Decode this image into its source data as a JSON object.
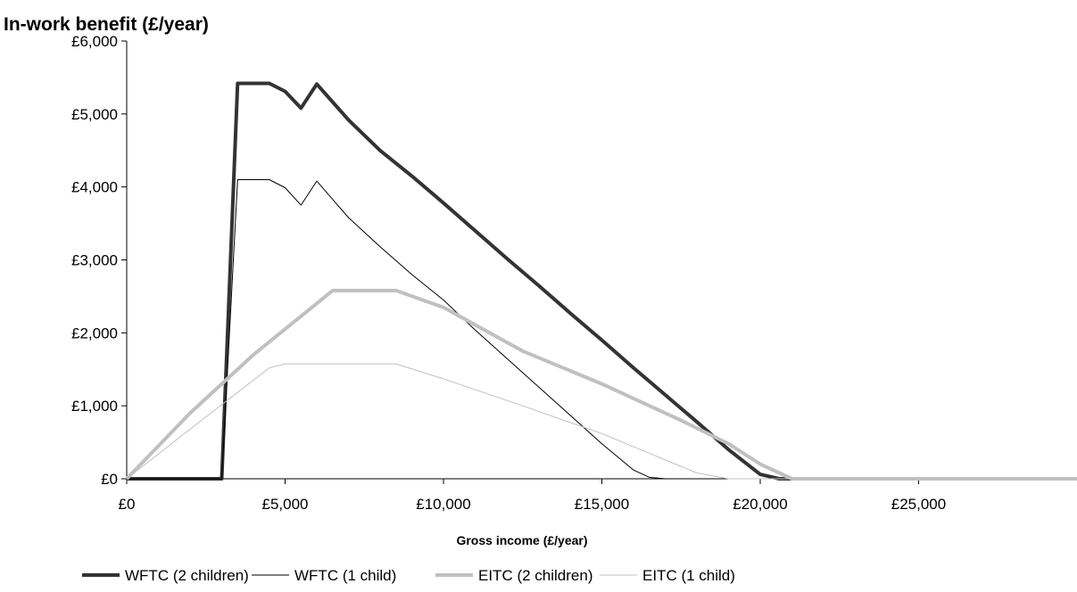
{
  "chart_data": {
    "type": "line",
    "title": "",
    "ylabel": "In-work benefit (£/year)",
    "xlabel": "Gross income (£/year)",
    "xlim": [
      0,
      30000
    ],
    "ylim": [
      0,
      6000
    ],
    "xticks": [
      0,
      5000,
      10000,
      15000,
      20000,
      25000
    ],
    "xtick_labels": [
      "£0",
      "£5,000",
      "£10,000",
      "£15,000",
      "£20,000",
      "£25,000"
    ],
    "yticks": [
      0,
      1000,
      2000,
      3000,
      4000,
      5000,
      6000
    ],
    "ytick_labels": [
      "£0",
      "£1,000",
      "£2,000",
      "£3,000",
      "£4,000",
      "£5,000",
      "£6,000"
    ],
    "grid": false,
    "legend_position": "bottom",
    "series": [
      {
        "name": "WFTC (2 children)",
        "color": "#333333",
        "style": "thick",
        "points": [
          [
            0,
            0
          ],
          [
            3000,
            0
          ],
          [
            3500,
            5420
          ],
          [
            4500,
            5420
          ],
          [
            5000,
            5310
          ],
          [
            5500,
            5080
          ],
          [
            6000,
            5410
          ],
          [
            7000,
            4920
          ],
          [
            8000,
            4500
          ],
          [
            9000,
            4150
          ],
          [
            10000,
            3780
          ],
          [
            11000,
            3400
          ],
          [
            12000,
            3020
          ],
          [
            13000,
            2650
          ],
          [
            14000,
            2270
          ],
          [
            15000,
            1900
          ],
          [
            16000,
            1520
          ],
          [
            17000,
            1150
          ],
          [
            18000,
            780
          ],
          [
            19000,
            400
          ],
          [
            20000,
            60
          ],
          [
            20600,
            0
          ],
          [
            30000,
            0
          ]
        ]
      },
      {
        "name": "WFTC (1 child)",
        "color": "#000000",
        "style": "thin",
        "points": [
          [
            0,
            0
          ],
          [
            3000,
            0
          ],
          [
            3500,
            4100
          ],
          [
            4500,
            4100
          ],
          [
            5000,
            3990
          ],
          [
            5500,
            3750
          ],
          [
            6000,
            4080
          ],
          [
            7000,
            3580
          ],
          [
            8000,
            3180
          ],
          [
            9000,
            2800
          ],
          [
            10000,
            2450
          ],
          [
            11000,
            2040
          ],
          [
            12000,
            1650
          ],
          [
            13000,
            1260
          ],
          [
            14000,
            870
          ],
          [
            15000,
            480
          ],
          [
            16000,
            120
          ],
          [
            16500,
            20
          ],
          [
            17000,
            0
          ],
          [
            30000,
            0
          ]
        ]
      },
      {
        "name": "EITC (2 children)",
        "color": "#c0c0c0",
        "style": "thick",
        "points": [
          [
            0,
            0
          ],
          [
            2000,
            900
          ],
          [
            4000,
            1700
          ],
          [
            6500,
            2580
          ],
          [
            8500,
            2580
          ],
          [
            10000,
            2350
          ],
          [
            12500,
            1750
          ],
          [
            15000,
            1300
          ],
          [
            17500,
            800
          ],
          [
            19000,
            480
          ],
          [
            20000,
            200
          ],
          [
            21000,
            0
          ],
          [
            30000,
            0
          ]
        ]
      },
      {
        "name": "EITC (1 child)",
        "color": "#c0c0c0",
        "style": "thin",
        "points": [
          [
            0,
            0
          ],
          [
            2000,
            680
          ],
          [
            4500,
            1520
          ],
          [
            5000,
            1575
          ],
          [
            8500,
            1575
          ],
          [
            10000,
            1370
          ],
          [
            12500,
            1000
          ],
          [
            15000,
            620
          ],
          [
            16500,
            350
          ],
          [
            18000,
            80
          ],
          [
            19000,
            0
          ],
          [
            30000,
            0
          ]
        ]
      }
    ]
  }
}
